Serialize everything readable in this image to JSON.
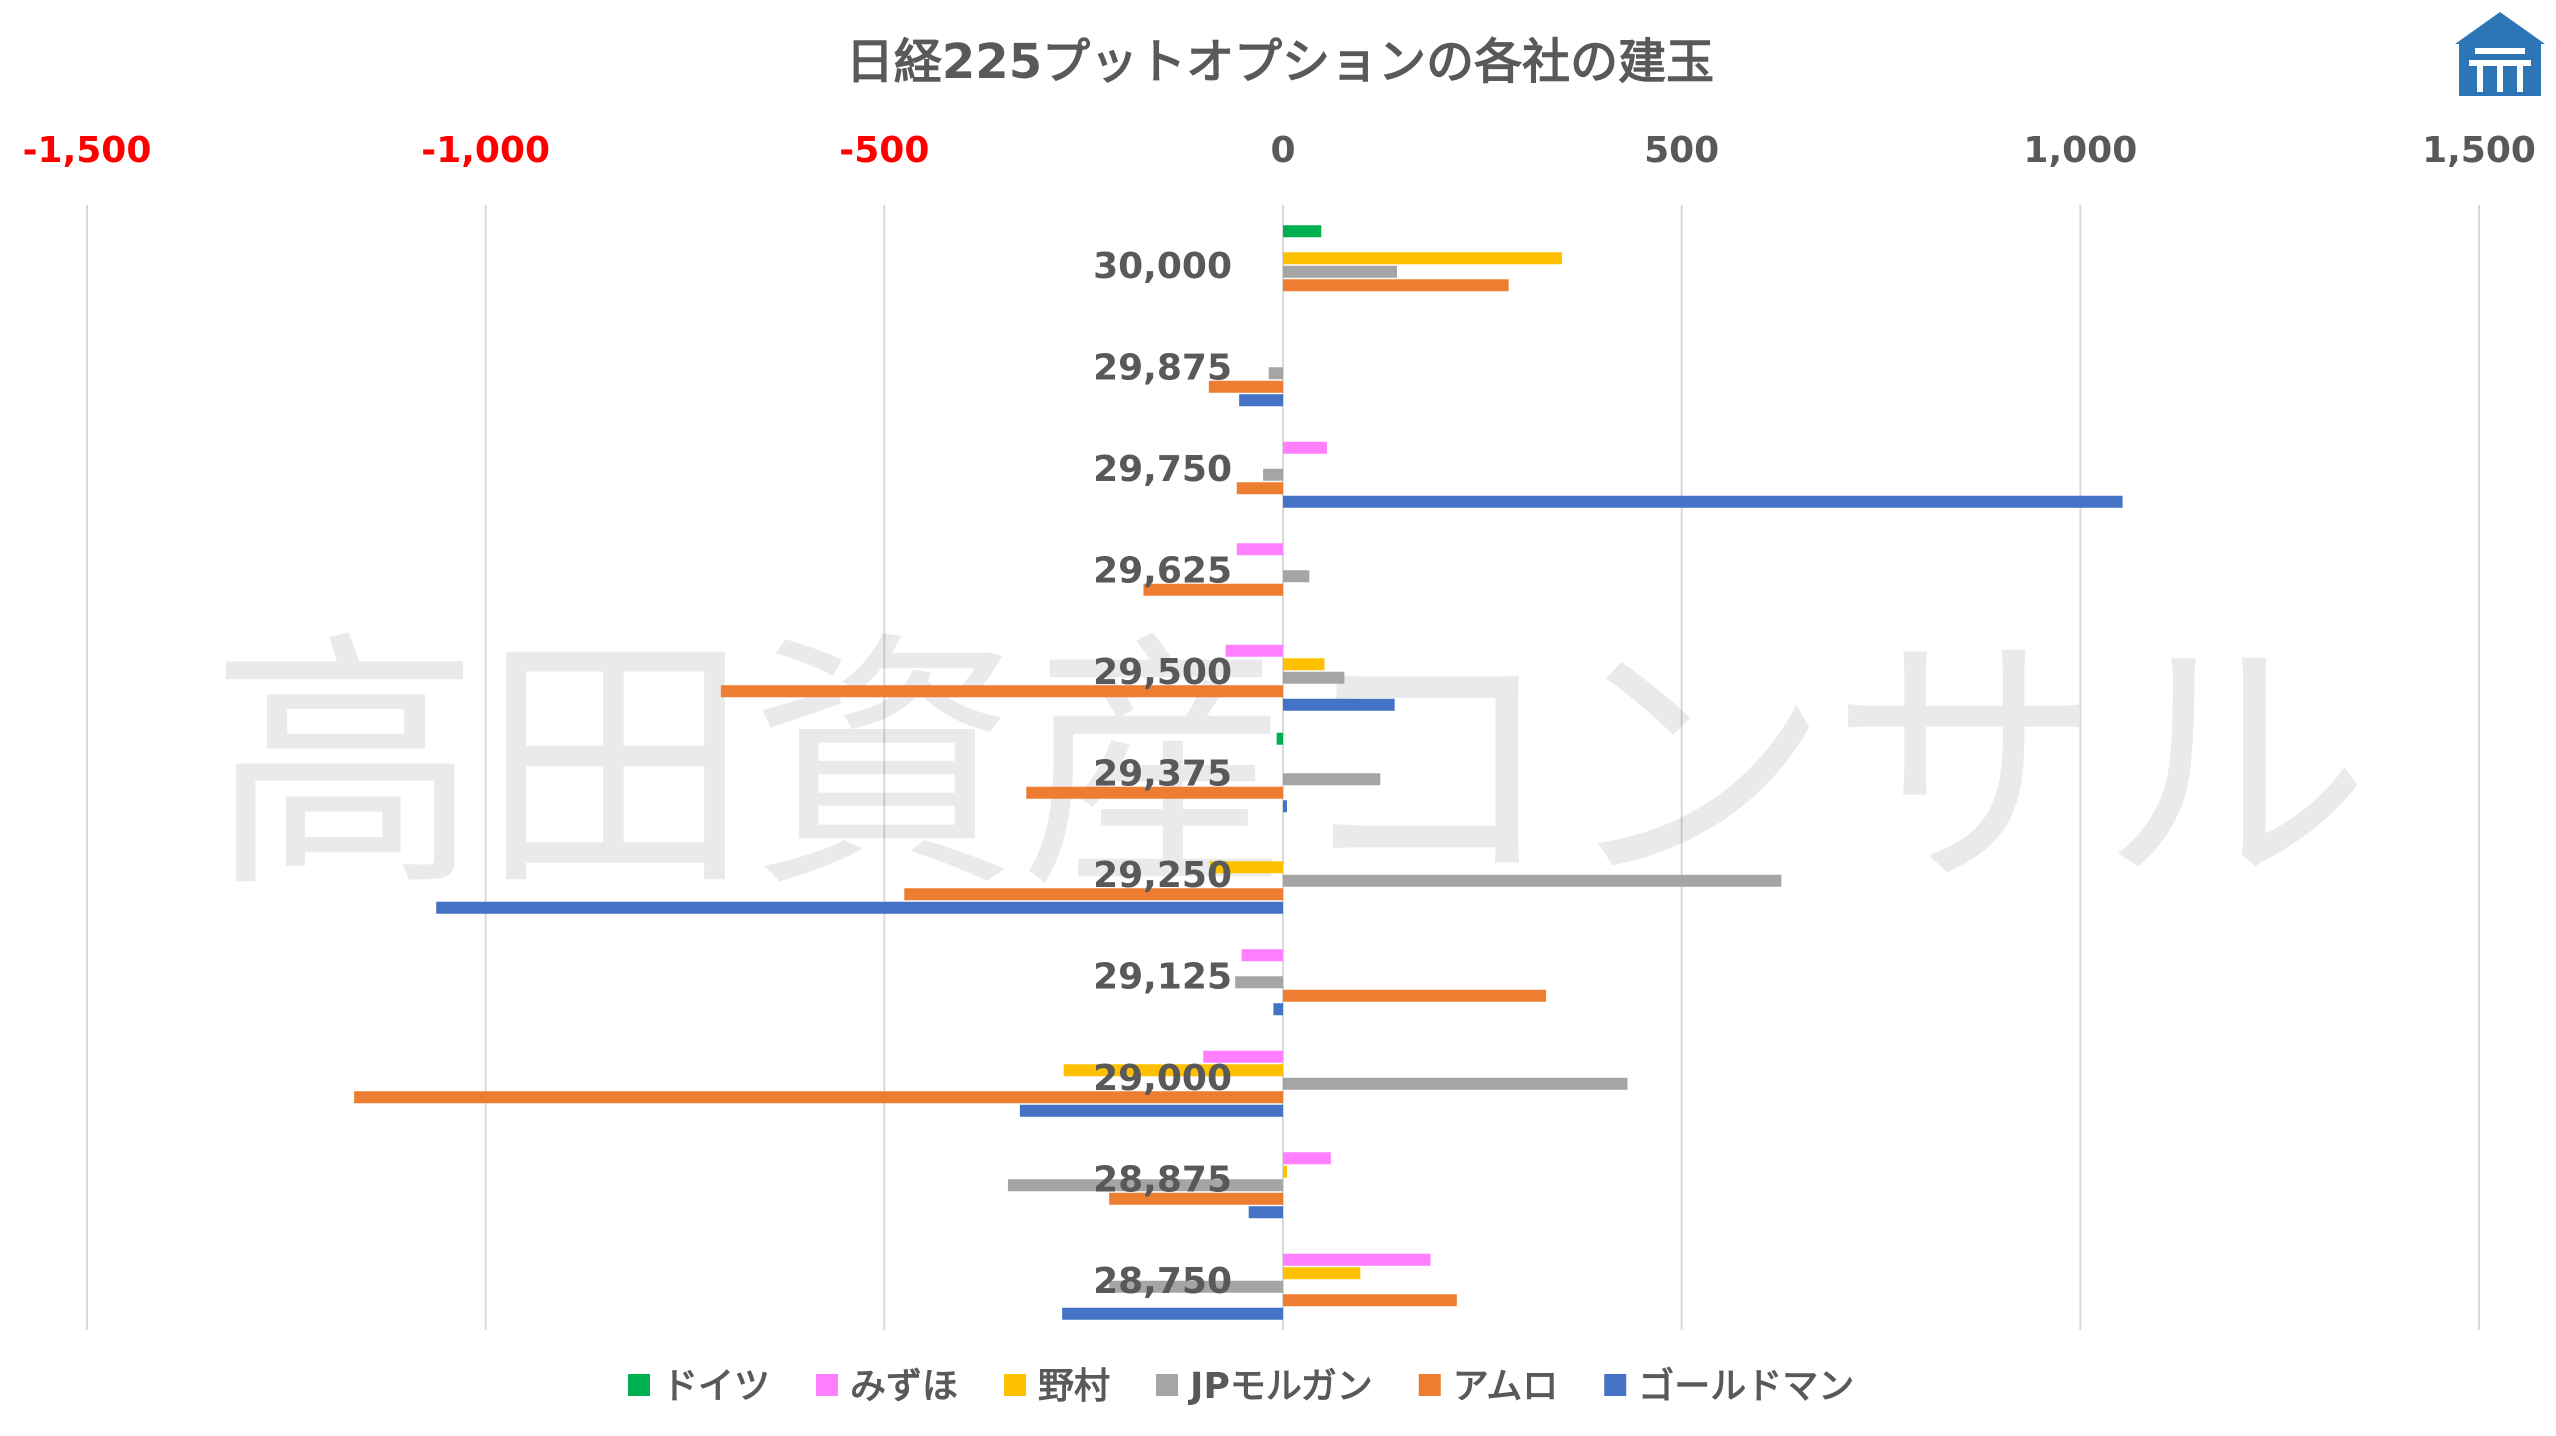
{
  "watermark": "高田資産コンサル",
  "colors": {
    "grid": "#d9d9d9",
    "negative_tick": "#ff0000",
    "positive_tick": "#595959",
    "logo": "#2e75b6"
  },
  "chart_data": {
    "type": "bar",
    "orientation": "horizontal",
    "title": "日経225プットオプションの各社の建玉",
    "xlim": [
      -1500,
      1500
    ],
    "x_ticks": [
      -1500,
      -1000,
      -500,
      0,
      500,
      1000,
      1500
    ],
    "x_tick_labels": [
      "-1,500",
      "-1,000",
      "-500",
      "0",
      "500",
      "1,000",
      "1,500"
    ],
    "categories": [
      "30,000",
      "29,875",
      "29,750",
      "29,625",
      "29,500",
      "29,375",
      "29,250",
      "29,125",
      "29,000",
      "28,875",
      "28,750"
    ],
    "legend_position": "bottom",
    "grid": true,
    "series": [
      {
        "name": "ドイツ",
        "color": "#00b050",
        "values": [
          48,
          0,
          0,
          0,
          0,
          -8,
          0,
          0,
          0,
          0,
          0
        ]
      },
      {
        "name": "みずほ",
        "color": "#ff7fff",
        "values": [
          0,
          0,
          55,
          -58,
          -72,
          0,
          0,
          -52,
          -100,
          60,
          185
        ]
      },
      {
        "name": "野村",
        "color": "#ffc000",
        "values": [
          350,
          0,
          0,
          0,
          52,
          0,
          -92,
          0,
          -275,
          5,
          97
        ]
      },
      {
        "name": "JPモルガン",
        "color": "#a5a5a5",
        "values": [
          143,
          -18,
          -25,
          33,
          77,
          122,
          625,
          -60,
          432,
          -345,
          -218
        ]
      },
      {
        "name": "アムロ",
        "color": "#ed7d31",
        "values": [
          283,
          -93,
          -58,
          -175,
          -705,
          -322,
          -475,
          330,
          -1165,
          -218,
          218
        ]
      },
      {
        "name": "ゴールドマン",
        "color": "#4472c4",
        "values": [
          0,
          -55,
          1053,
          0,
          140,
          5,
          -1062,
          -12,
          -330,
          -43,
          -277
        ]
      }
    ]
  }
}
